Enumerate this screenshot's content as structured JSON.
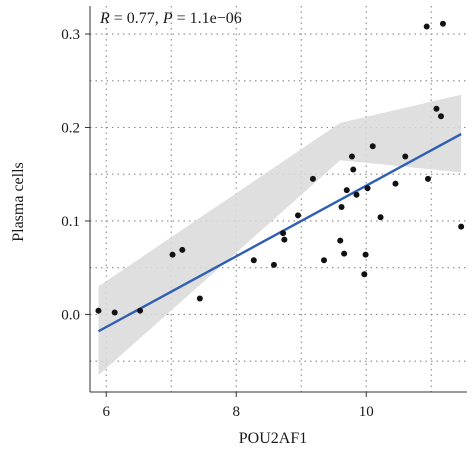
{
  "chart_data": {
    "type": "scatter",
    "xlabel": "POU2AF1",
    "ylabel": "Plasma cells",
    "xlim": [
      5.75,
      11.55
    ],
    "ylim": [
      -0.083,
      0.33
    ],
    "x_ticks": [
      6,
      8,
      10
    ],
    "x_tick_labels": [
      "6",
      "8",
      "10"
    ],
    "y_ticks": [
      0.0,
      0.1,
      0.2,
      0.3
    ],
    "y_tick_labels": [
      "0.0",
      "0.1",
      "0.2",
      "0.3"
    ],
    "grid": true,
    "annotation": {
      "r_label": "R",
      "r_eq": " = 0.77, ",
      "p_label": "P",
      "p_eq": " = 1.1e−06"
    },
    "points": {
      "x": [
        5.88,
        6.13,
        6.52,
        7.02,
        7.17,
        7.44,
        8.27,
        8.58,
        8.72,
        8.74,
        8.95,
        9.18,
        9.35,
        9.6,
        9.62,
        9.66,
        9.7,
        9.78,
        9.8,
        9.85,
        9.97,
        9.99,
        10.02,
        10.1,
        10.22,
        10.45,
        10.6,
        10.93,
        10.95,
        11.08,
        11.15,
        11.18,
        11.46
      ],
      "y": [
        0.004,
        0.002,
        0.004,
        0.064,
        0.069,
        0.017,
        0.058,
        0.053,
        0.087,
        0.08,
        0.106,
        0.145,
        0.058,
        0.079,
        0.115,
        0.065,
        0.133,
        0.169,
        0.155,
        0.128,
        0.043,
        0.064,
        0.135,
        0.18,
        0.104,
        0.14,
        0.169,
        0.308,
        0.145,
        0.22,
        0.212,
        0.311,
        0.094
      ]
    },
    "fit": {
      "x": [
        5.88,
        11.46
      ],
      "y": [
        -0.018,
        0.193
      ],
      "band_upper": [
        0.03,
        0.205,
        0.235
      ],
      "band_lower": [
        -0.065,
        0.165,
        0.152
      ],
      "band_x": [
        5.88,
        9.6,
        11.46
      ]
    },
    "colors": {
      "point": "#111111",
      "line": "#2f5fb3",
      "band": "#d9d9d9",
      "grid": "#8a8a8a",
      "axis": "#333333"
    }
  }
}
